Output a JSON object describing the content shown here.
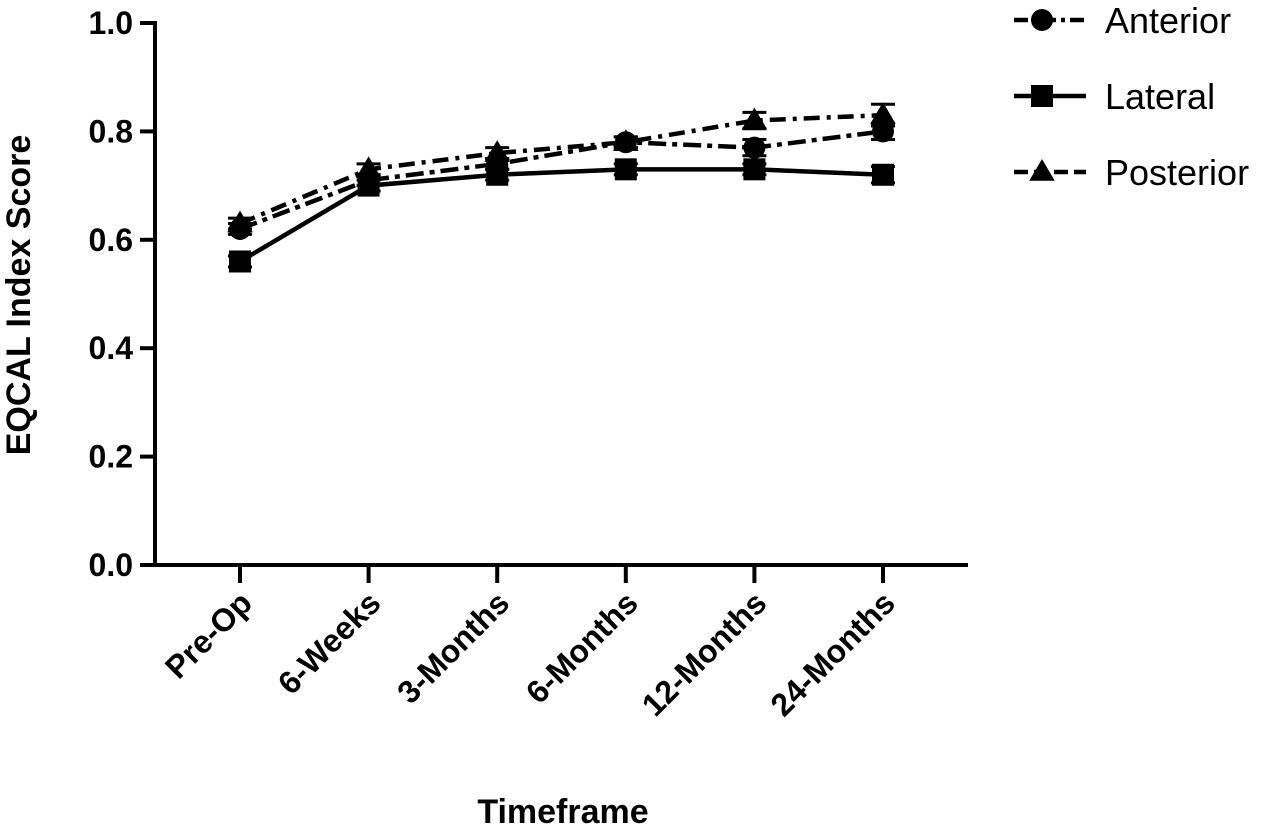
{
  "chart_data": {
    "type": "line",
    "title": "",
    "xlabel": "Timeframe",
    "ylabel": "EQCAL Index Score",
    "categories": [
      "Pre-Op",
      "6-Weeks",
      "3-Months",
      "6-Months",
      "12-Months",
      "24-Months"
    ],
    "ylim": [
      0,
      1.0
    ],
    "yticks": [
      "0.0",
      "0.2",
      "0.4",
      "0.6",
      "0.8",
      "1.0"
    ],
    "grid": false,
    "legend_position": "top-right",
    "series": [
      {
        "name": "Anterior",
        "marker": "circle",
        "line_style": "dash-dot-short",
        "values": [
          0.62,
          0.71,
          0.74,
          0.78,
          0.77,
          0.8
        ],
        "error": [
          0.01,
          0.01,
          0.01,
          0.01,
          0.015,
          0.015
        ]
      },
      {
        "name": "Lateral",
        "marker": "square",
        "line_style": "solid",
        "values": [
          0.56,
          0.7,
          0.72,
          0.73,
          0.73,
          0.72
        ],
        "error": [
          0.01,
          0.01,
          0.01,
          0.01,
          0.01,
          0.015
        ]
      },
      {
        "name": "Posterior",
        "marker": "triangle",
        "line_style": "dash-dot-long",
        "values": [
          0.63,
          0.73,
          0.76,
          0.78,
          0.82,
          0.83
        ],
        "error": [
          0.01,
          0.01,
          0.01,
          0.01,
          0.015,
          0.02
        ]
      }
    ]
  }
}
